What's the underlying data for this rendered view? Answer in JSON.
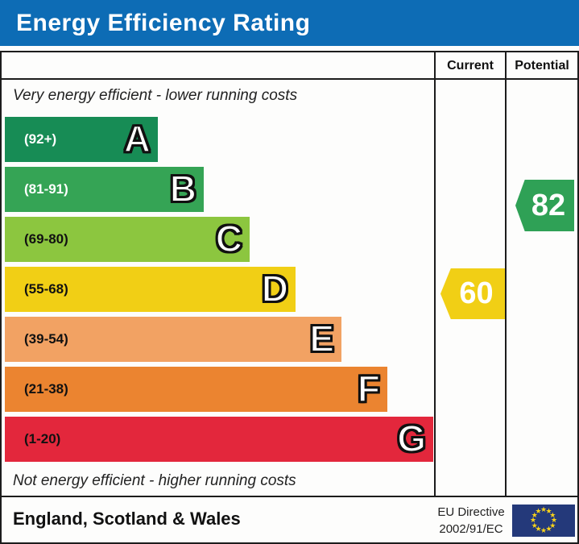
{
  "title": "Energy Efficiency Rating",
  "title_bg": "#0d6cb5",
  "header": {
    "current": "Current",
    "potential": "Potential"
  },
  "captions": {
    "top": "Very energy efficient - lower running costs",
    "bottom": "Not energy efficient - higher running costs"
  },
  "bands": [
    {
      "letter": "A",
      "range": "(92+)",
      "color": "#178c55",
      "range_color": "#ffffff"
    },
    {
      "letter": "B",
      "range": "(81-91)",
      "color": "#35a455",
      "range_color": "#ffffff"
    },
    {
      "letter": "C",
      "range": "(69-80)",
      "color": "#8cc63f",
      "range_color": "#111111"
    },
    {
      "letter": "D",
      "range": "(55-68)",
      "color": "#f1cf15",
      "range_color": "#111111"
    },
    {
      "letter": "E",
      "range": "(39-54)",
      "color": "#f2a263",
      "range_color": "#111111"
    },
    {
      "letter": "F",
      "range": "(21-38)",
      "color": "#eb8430",
      "range_color": "#111111"
    },
    {
      "letter": "G",
      "range": "(1-20)",
      "color": "#e3273c",
      "range_color": "#111111"
    }
  ],
  "ratings": {
    "current": {
      "value": "60",
      "band": "D",
      "color": "#f1cf15"
    },
    "potential": {
      "value": "82",
      "band": "B",
      "color": "#2fa156"
    }
  },
  "footer": {
    "region": "England, Scotland & Wales",
    "directive_line1": "EU Directive",
    "directive_line2": "2002/91/EC",
    "eu_flag": {
      "bg": "#24397a",
      "star_color": "#f8d21a",
      "stars": 12
    }
  },
  "chart_data": {
    "type": "bar",
    "title": "Energy Efficiency Rating",
    "categories": [
      "A",
      "B",
      "C",
      "D",
      "E",
      "F",
      "G"
    ],
    "band_ranges": [
      "92+",
      "81-91",
      "69-80",
      "55-68",
      "39-54",
      "21-38",
      "1-20"
    ],
    "band_colors": [
      "#178c55",
      "#35a455",
      "#8cc63f",
      "#f1cf15",
      "#f2a263",
      "#eb8430",
      "#e3273c"
    ],
    "bar_lengths_relative": [
      0.36,
      0.46,
      0.57,
      0.68,
      0.79,
      0.89,
      1.0
    ],
    "current_rating": 60,
    "current_band": "D",
    "potential_rating": 82,
    "potential_band": "B",
    "column_headers": [
      "Current",
      "Potential"
    ],
    "top_caption": "Very energy efficient - lower running costs",
    "bottom_caption": "Not energy efficient - higher running costs",
    "region": "England, Scotland & Wales",
    "directive": "EU Directive 2002/91/EC"
  }
}
